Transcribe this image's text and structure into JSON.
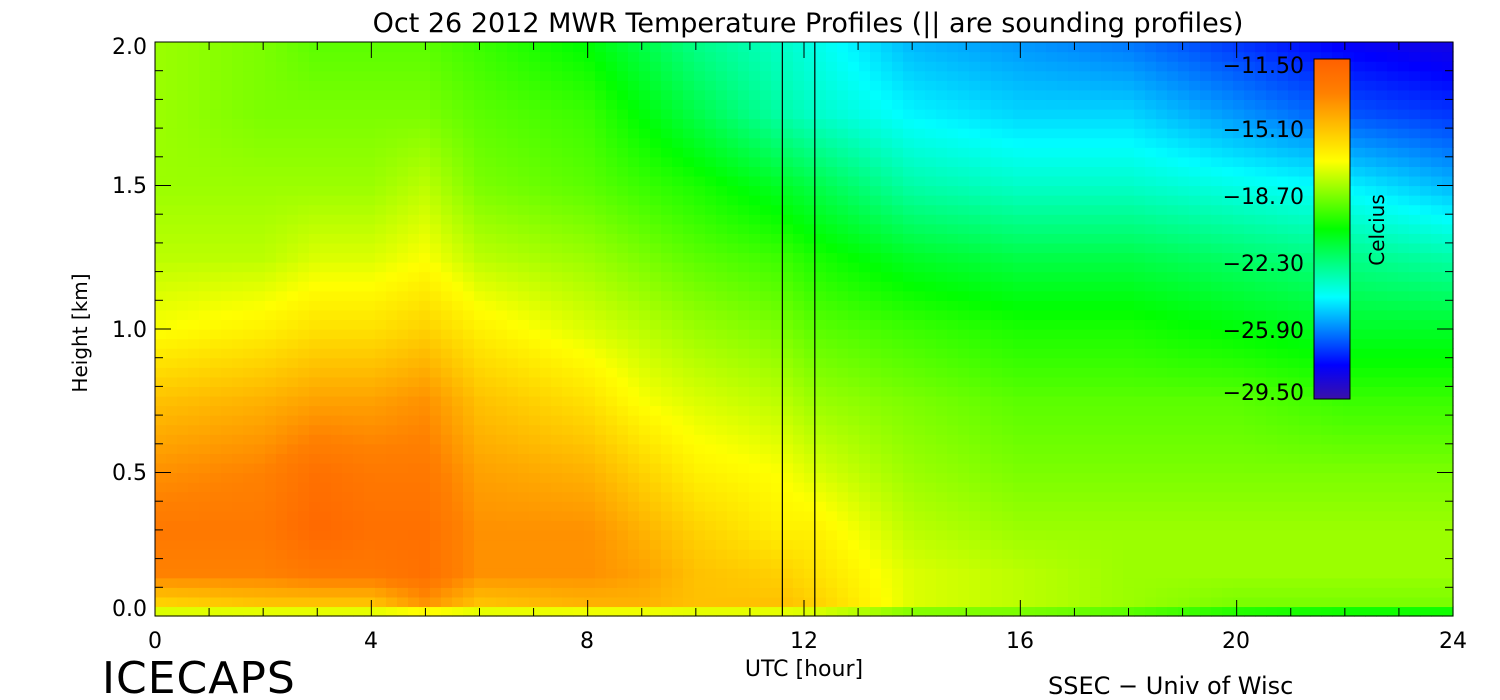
{
  "chart_data": {
    "type": "heatmap",
    "title": "Oct 26 2012 MWR Temperature Profiles (||  are sounding profiles)",
    "xlabel": "UTC [hour]",
    "ylabel": "Height [km]",
    "xlim": [
      0,
      24
    ],
    "ylim": [
      0,
      2.0
    ],
    "x_ticks": [
      "0",
      "4",
      "8",
      "12",
      "16",
      "20",
      "24"
    ],
    "y_ticks": [
      "0.0",
      "0.5",
      "1.0",
      "1.5",
      "2.0"
    ],
    "sounding_times": [
      11.6,
      12.2
    ],
    "colorbar": {
      "label": "Celcius",
      "min": -31.3,
      "max": -11.5,
      "tick_labels": [
        "−11.50",
        "−15.10",
        "−18.70",
        "−22.30",
        "−25.90",
        "−29.50"
      ],
      "tick_values": [
        -11.5,
        -15.1,
        -18.7,
        -22.3,
        -25.9,
        -29.5
      ],
      "palette": [
        "#3a10a8",
        "#0000ff",
        "#0080ff",
        "#00ffff",
        "#00ff80",
        "#00ff00",
        "#80ff00",
        "#ffff00",
        "#ffc000",
        "#ff8000",
        "#ff6000"
      ]
    },
    "annotations": {
      "left_logo": "ICECAPS",
      "right_credit": "SSEC − Univ of Wisc"
    },
    "field": {
      "heights_km": [
        0.0,
        0.05,
        0.15,
        0.3,
        0.5,
        0.75,
        1.0,
        1.25,
        1.5,
        1.75,
        2.0
      ],
      "times_hr": [
        0,
        2,
        3,
        4,
        5,
        6,
        8,
        9,
        10,
        11.6,
        12.2,
        14,
        16,
        18,
        20,
        22,
        24
      ],
      "temps_c": [
        [
          -19,
          -16,
          -13.5,
          -13,
          -14,
          -15.5,
          -17.5,
          -18.5,
          -19,
          -19,
          -19
        ],
        [
          -19,
          -15.5,
          -13.5,
          -13,
          -13.5,
          -15,
          -17,
          -18.5,
          -19,
          -19.5,
          -19.5
        ],
        [
          -19,
          -15.5,
          -13,
          -12,
          -12.5,
          -14.5,
          -16.5,
          -18,
          -19,
          -19.5,
          -20
        ],
        [
          -19,
          -15.5,
          -13,
          -12.5,
          -13,
          -14.5,
          -16.5,
          -18,
          -19,
          -19.5,
          -20
        ],
        [
          -19,
          -14,
          -12.5,
          -12.5,
          -13,
          -14,
          -16,
          -17.5,
          -18.5,
          -19.5,
          -20
        ],
        [
          -19,
          -15.5,
          -14,
          -14,
          -14.5,
          -15.5,
          -17,
          -18.5,
          -19.5,
          -20,
          -20.5
        ],
        [
          -19,
          -15,
          -14,
          -14,
          -15,
          -16.5,
          -18,
          -19,
          -20,
          -20.5,
          -21.5
        ],
        [
          -19,
          -15,
          -14.5,
          -15,
          -16,
          -17.5,
          -18.5,
          -19.5,
          -20.5,
          -21.5,
          -22.5
        ],
        [
          -19,
          -15.5,
          -15.5,
          -16,
          -17,
          -18,
          -19,
          -20,
          -21,
          -22.5,
          -23.5
        ],
        [
          -19,
          -15.5,
          -16,
          -17,
          -17.5,
          -18.5,
          -19.5,
          -20.5,
          -22,
          -24,
          -24.5
        ],
        [
          -19,
          -16,
          -16.5,
          -17,
          -18,
          -19,
          -20,
          -21,
          -22.5,
          -24.5,
          -25
        ],
        [
          -20,
          -18,
          -18,
          -18.5,
          -19,
          -19.5,
          -20.5,
          -22,
          -24,
          -25.5,
          -26.5
        ],
        [
          -20,
          -18.5,
          -18.5,
          -19,
          -19.5,
          -20,
          -21,
          -22.5,
          -24.5,
          -26,
          -27
        ],
        [
          -20.5,
          -19,
          -19,
          -19,
          -19.5,
          -20,
          -21,
          -22.5,
          -24.5,
          -26,
          -27.5
        ],
        [
          -21.5,
          -19.5,
          -19,
          -19,
          -19.5,
          -20,
          -21.5,
          -23,
          -25,
          -27,
          -28.5
        ],
        [
          -22,
          -19.5,
          -19,
          -19,
          -19.5,
          -20.5,
          -22,
          -23.5,
          -25.5,
          -28,
          -29.5
        ],
        [
          -22,
          -19.5,
          -19,
          -19,
          -19.5,
          -20.5,
          -22,
          -24,
          -26.5,
          -28.5,
          -30
        ]
      ]
    }
  }
}
